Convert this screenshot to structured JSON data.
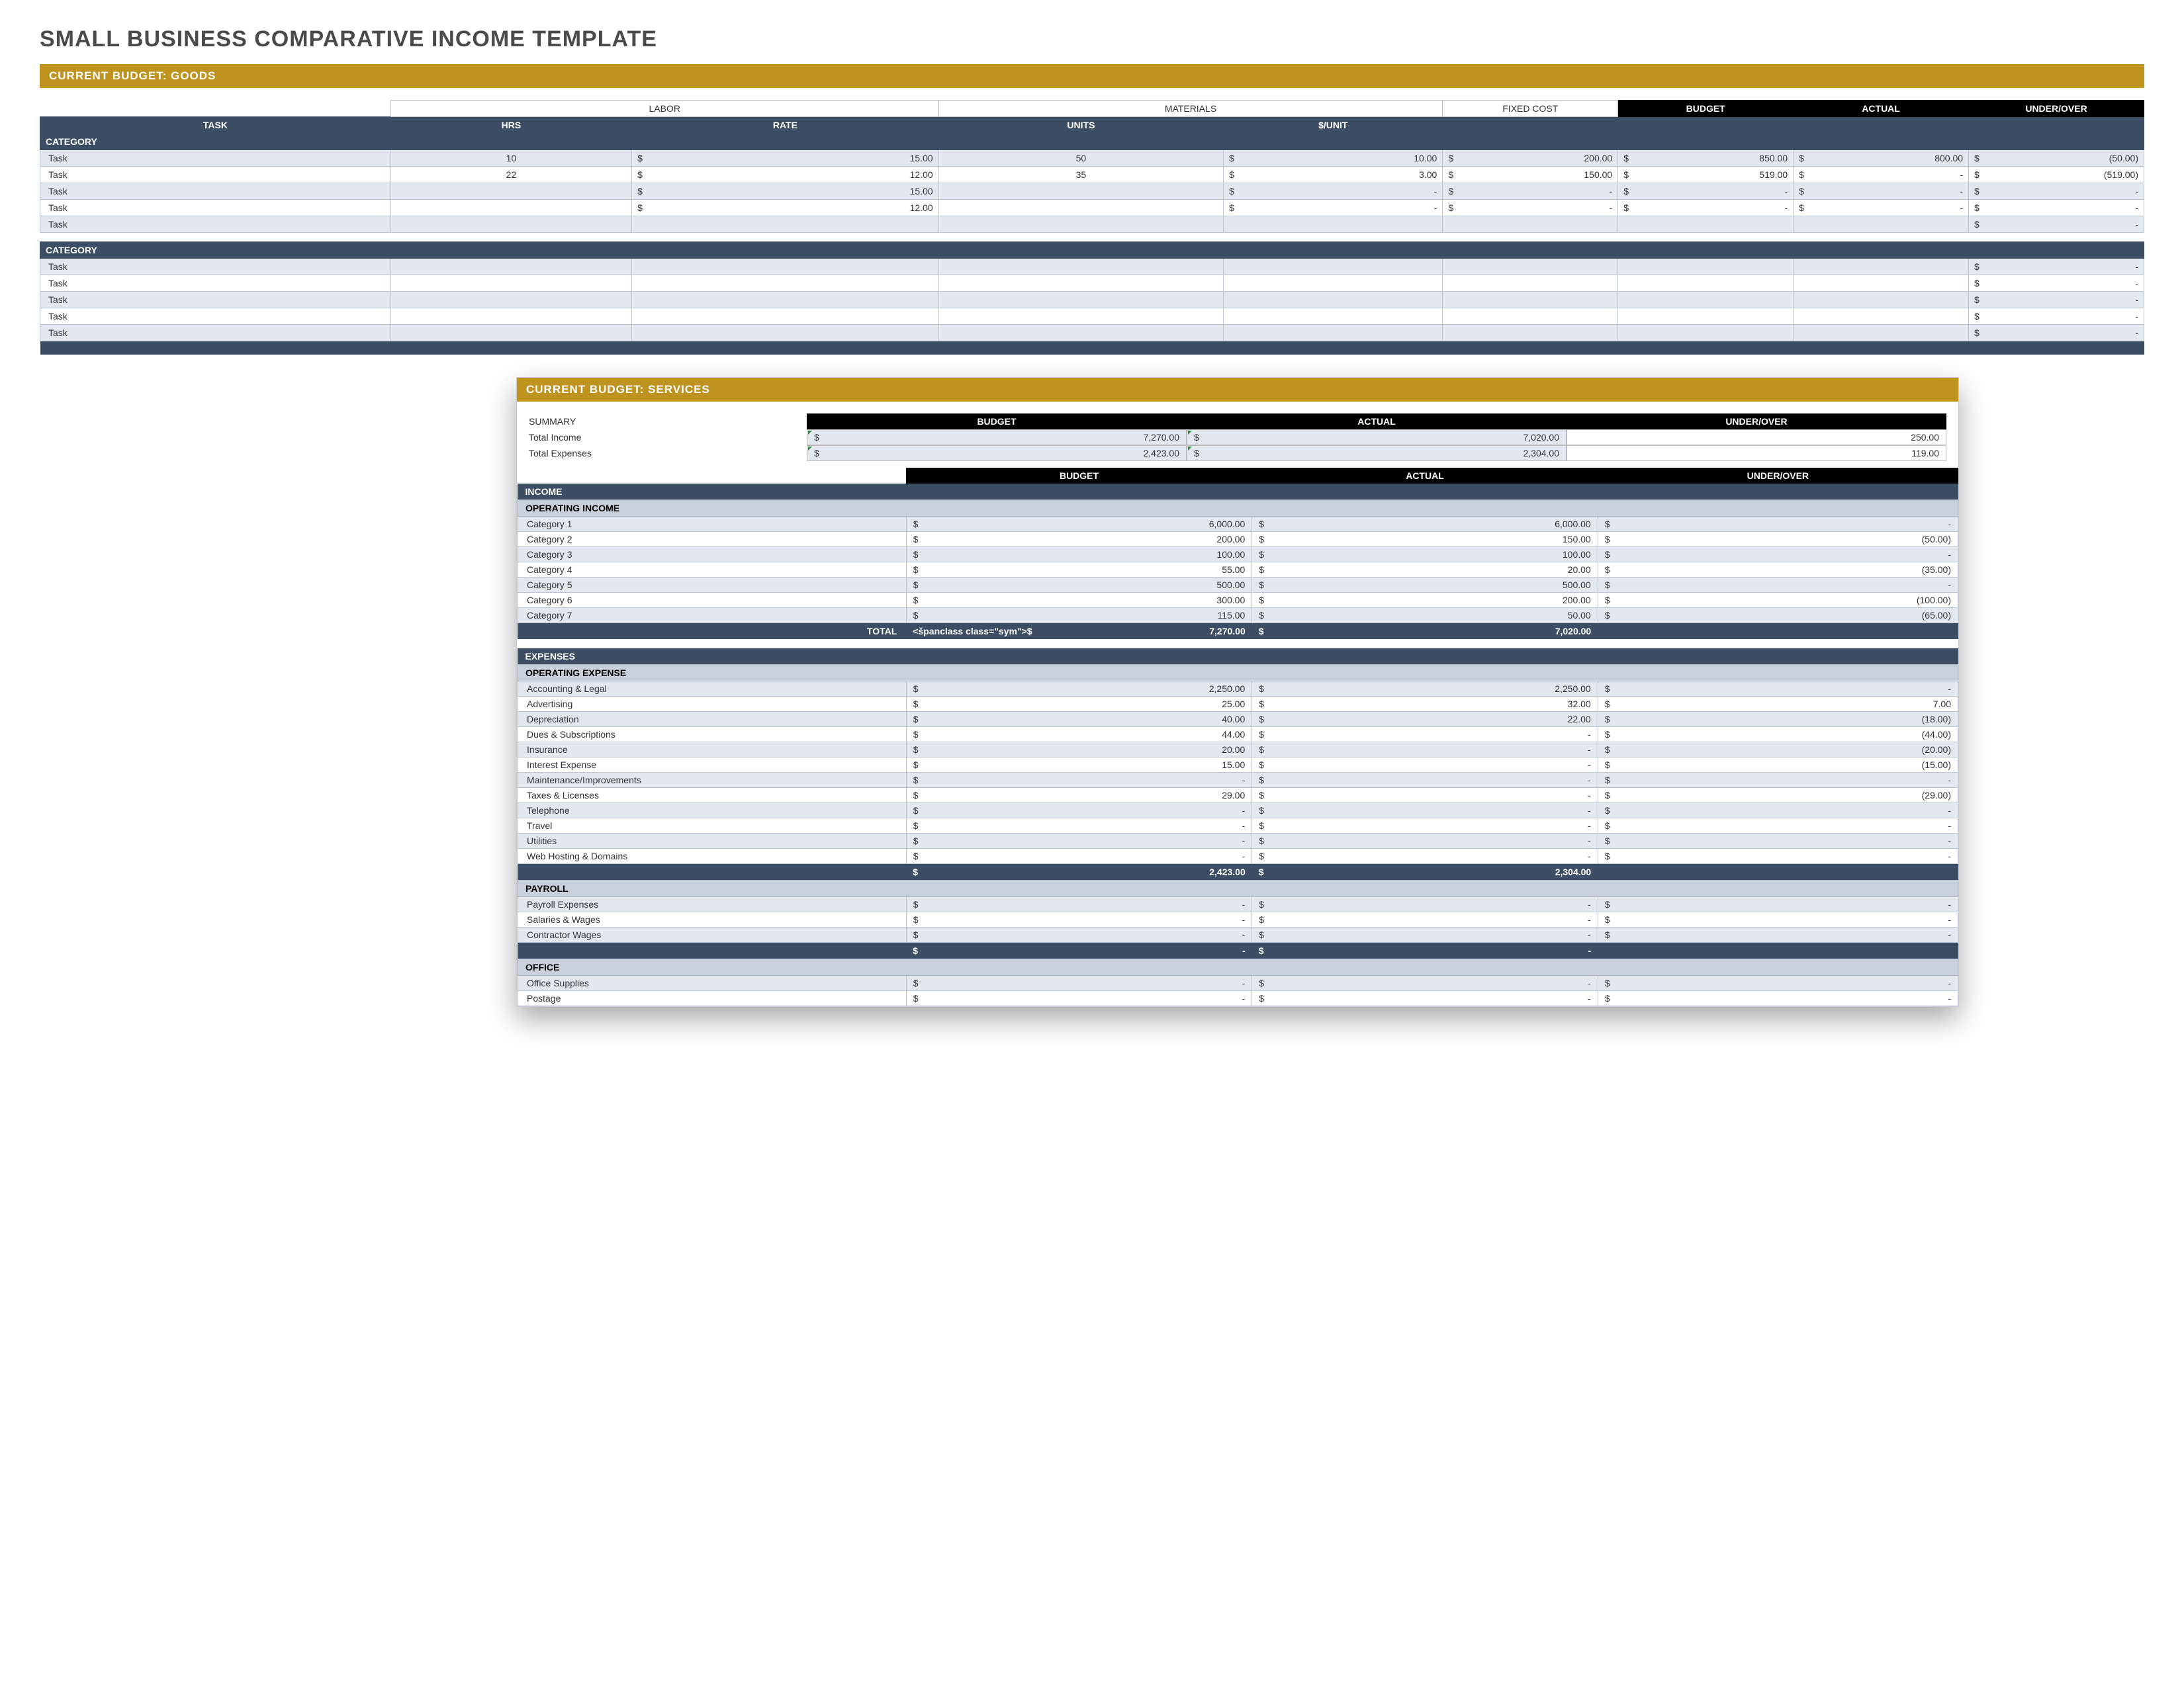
{
  "colors": {
    "gold": "#bf9320",
    "navy": "#3d4d63",
    "navy_light": "#c8d0dc",
    "row_alt": "#e3e8ef",
    "black": "#000000",
    "white": "#ffffff",
    "border": "#bcc5d2",
    "flag_green": "#2e8b3d"
  },
  "page_title": "SMALL BUSINESS COMPARATIVE INCOME TEMPLATE",
  "goods": {
    "banner": "CURRENT BUDGET: GOODS",
    "group_headers": {
      "labor": "LABOR",
      "materials": "MATERIALS",
      "fixed": "FIXED COST",
      "budget": "BUDGET",
      "actual": "ACTUAL",
      "under": "UNDER/OVER"
    },
    "col_headers": {
      "task": "TASK",
      "hrs": "HRS",
      "rate": "RATE",
      "units": "UNITS",
      "per_unit": "$/UNIT"
    },
    "category_label": "CATEGORY",
    "col_widths": {
      "task": "16%",
      "hrs": "11%",
      "rate": "14%",
      "units": "13%",
      "per_unit": "10%",
      "fixed": "8%",
      "budget": "8%",
      "actual": "8%",
      "under": "8%"
    },
    "cat1_rows": [
      {
        "task": "Task",
        "hrs": "10",
        "rate": "15.00",
        "units": "50",
        "per_unit": "10.00",
        "fixed": "200.00",
        "budget": "850.00",
        "actual": "800.00",
        "under": "(50.00)"
      },
      {
        "task": "Task",
        "hrs": "22",
        "rate": "12.00",
        "units": "35",
        "per_unit": "3.00",
        "fixed": "150.00",
        "budget": "519.00",
        "actual": "-",
        "under": "(519.00)"
      },
      {
        "task": "Task",
        "hrs": "",
        "rate": "15.00",
        "units": "",
        "per_unit": "-",
        "fixed": "-",
        "budget": "-",
        "actual": "-",
        "under": "-"
      },
      {
        "task": "Task",
        "hrs": "",
        "rate": "12.00",
        "units": "",
        "per_unit": "-",
        "fixed": "-",
        "budget": "-",
        "actual": "-",
        "under": "-"
      },
      {
        "task": "Task",
        "hrs": "",
        "rate": "",
        "units": "",
        "per_unit": "",
        "fixed": "",
        "budget": "",
        "actual": "",
        "under": "-"
      }
    ],
    "cat2_rows": [
      {
        "task": "Task",
        "under": "-"
      },
      {
        "task": "Task",
        "under": "-"
      },
      {
        "task": "Task",
        "under": "-"
      },
      {
        "task": "Task",
        "under": "-"
      },
      {
        "task": "Task",
        "under": "-"
      }
    ]
  },
  "services": {
    "banner": "CURRENT BUDGET: SERVICES",
    "summary_label": "SUMMARY",
    "summary_rows": {
      "income_label": "Total Income",
      "expenses_label": "Total Expenses",
      "headers": {
        "budget": "BUDGET",
        "actual": "ACTUAL",
        "under": "UNDER/OVER"
      },
      "income": {
        "budget": "7,270.00",
        "actual": "7,020.00",
        "under": "250.00"
      },
      "expenses": {
        "budget": "2,423.00",
        "actual": "2,304.00",
        "under": "119.00"
      }
    },
    "col_headers": {
      "budget": "BUDGET",
      "actual": "ACTUAL",
      "under": "UNDER/OVER"
    },
    "col_widths": {
      "label": "27%",
      "budget": "24%",
      "actual": "24%",
      "under": "25%"
    },
    "income_section": "INCOME",
    "operating_income": "OPERATING INCOME",
    "income_rows": [
      {
        "label": "Category 1",
        "budget": "6,000.00",
        "actual": "6,000.00",
        "under": "-"
      },
      {
        "label": "Category 2",
        "budget": "200.00",
        "actual": "150.00",
        "under": "(50.00)"
      },
      {
        "label": "Category 3",
        "budget": "100.00",
        "actual": "100.00",
        "under": "-"
      },
      {
        "label": "Category 4",
        "budget": "55.00",
        "actual": "20.00",
        "under": "(35.00)"
      },
      {
        "label": "Category 5",
        "budget": "500.00",
        "actual": "500.00",
        "under": "-"
      },
      {
        "label": "Category 6",
        "budget": "300.00",
        "actual": "200.00",
        "under": "(100.00)"
      },
      {
        "label": "Category 7",
        "budget": "115.00",
        "actual": "50.00",
        "under": "(65.00)"
      }
    ],
    "income_total": {
      "label": "TOTAL",
      "budget": "7,270.00",
      "actual": "7,020.00"
    },
    "expenses_section": "EXPENSES",
    "operating_expense": "OPERATING EXPENSE",
    "expense_rows": [
      {
        "label": "Accounting & Legal",
        "budget": "2,250.00",
        "actual": "2,250.00",
        "under": "-"
      },
      {
        "label": "Advertising",
        "budget": "25.00",
        "actual": "32.00",
        "under": "7.00"
      },
      {
        "label": "Depreciation",
        "budget": "40.00",
        "actual": "22.00",
        "under": "(18.00)"
      },
      {
        "label": "Dues & Subscriptions",
        "budget": "44.00",
        "actual": "-",
        "under": "(44.00)"
      },
      {
        "label": "Insurance",
        "budget": "20.00",
        "actual": "-",
        "under": "(20.00)"
      },
      {
        "label": "Interest Expense",
        "budget": "15.00",
        "actual": "-",
        "under": "(15.00)"
      },
      {
        "label": "Maintenance/Improvements",
        "budget": "-",
        "actual": "-",
        "under": "-"
      },
      {
        "label": "Taxes & Licenses",
        "budget": "29.00",
        "actual": "-",
        "under": "(29.00)"
      },
      {
        "label": "Telephone",
        "budget": "-",
        "actual": "-",
        "under": "-"
      },
      {
        "label": "Travel",
        "budget": "-",
        "actual": "-",
        "under": "-"
      },
      {
        "label": "Utilities",
        "budget": "-",
        "actual": "-",
        "under": "-"
      },
      {
        "label": "Web Hosting & Domains",
        "budget": "-",
        "actual": "-",
        "under": "-"
      }
    ],
    "expense_total": {
      "budget": "2,423.00",
      "actual": "2,304.00"
    },
    "payroll_section": "PAYROLL",
    "payroll_rows": [
      {
        "label": "Payroll Expenses",
        "budget": "-",
        "actual": "-",
        "under": "-"
      },
      {
        "label": "Salaries & Wages",
        "budget": "-",
        "actual": "-",
        "under": "-"
      },
      {
        "label": "Contractor Wages",
        "budget": "-",
        "actual": "-",
        "under": "-"
      }
    ],
    "payroll_total": {
      "budget": "-",
      "actual": "-"
    },
    "office_section": "OFFICE",
    "office_rows": [
      {
        "label": "Office Supplies",
        "budget": "-",
        "actual": "-",
        "under": "-"
      },
      {
        "label": "Postage",
        "budget": "-",
        "actual": "-",
        "under": "-"
      }
    ]
  }
}
